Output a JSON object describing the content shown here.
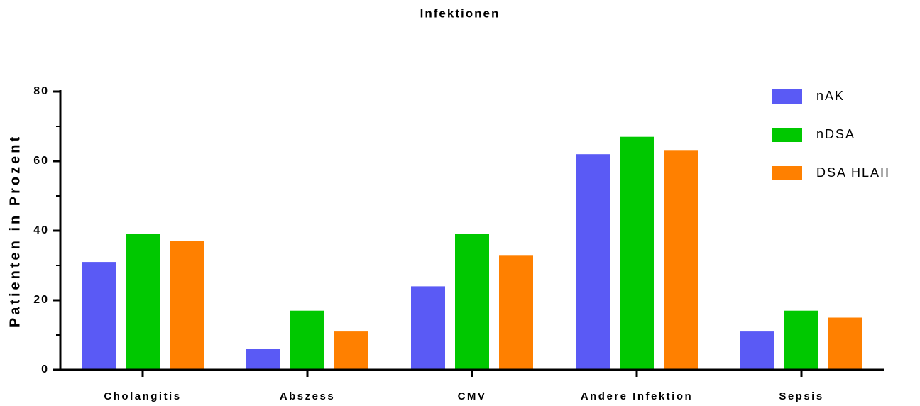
{
  "chart_data": {
    "type": "bar",
    "title": "Infektionen",
    "ylabel": "Patienten in Prozent",
    "categories": [
      "Cholangitis",
      "Abszess",
      "CMV",
      "Andere Infektion",
      "Sepsis"
    ],
    "series": [
      {
        "name": "nAK",
        "color": "#5a5af5",
        "values": [
          31,
          6,
          24,
          62,
          11
        ]
      },
      {
        "name": "nDSA",
        "color": "#00c800",
        "values": [
          39,
          17,
          39,
          67,
          17
        ]
      },
      {
        "name": "DSA HLAII",
        "color": "#ff8000",
        "values": [
          37,
          11,
          33,
          63,
          15
        ]
      }
    ],
    "ylim": [
      0,
      80
    ],
    "yticks": [
      0,
      20,
      40,
      60,
      80
    ],
    "minor_yticks": [
      10,
      30,
      50,
      70
    ],
    "legend": "upper right"
  }
}
